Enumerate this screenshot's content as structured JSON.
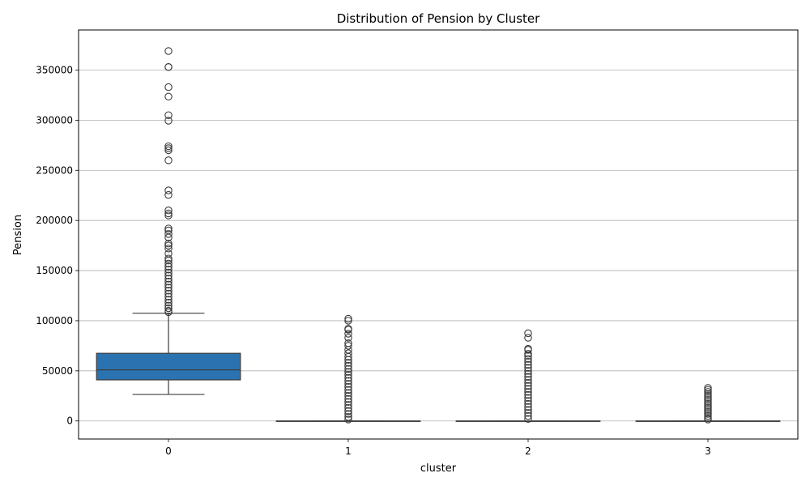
{
  "chart_data": {
    "type": "box",
    "title": "Distribution of Pension by Cluster",
    "xlabel": "cluster",
    "ylabel": "Pension",
    "categories": [
      "0",
      "1",
      "2",
      "3"
    ],
    "ylim": [
      -18000,
      390000
    ],
    "yticks": [
      0,
      50000,
      100000,
      150000,
      200000,
      250000,
      300000,
      350000
    ],
    "ytick_labels": [
      "0",
      "50000",
      "100000",
      "150000",
      "200000",
      "250000",
      "300000",
      "350000"
    ],
    "grid": "horizontal",
    "box_color": "#2a73b0",
    "boxes": [
      {
        "cluster": "0",
        "whisker_low": 26500,
        "q1": 41000,
        "median": 51000,
        "q3": 67500,
        "whisker_high": 107500,
        "outliers": [
          369000,
          353000,
          353000,
          333000,
          323500,
          305000,
          299500,
          274000,
          272000,
          270000,
          260000,
          230000,
          225500,
          210000,
          207000,
          205000,
          192000,
          190000,
          186500,
          183000,
          177000,
          175000,
          172000,
          167000,
          162000,
          160000,
          157000,
          154000,
          151000,
          148000,
          145000,
          142000,
          139000,
          136000,
          133000,
          130000,
          127000,
          124000,
          121000,
          118000,
          115000,
          112500,
          110000,
          108500
        ],
        "color": "#2a73b0"
      },
      {
        "cluster": "1",
        "whisker_low": 0,
        "q1": 0,
        "median": 0,
        "q3": 0,
        "whisker_high": 0,
        "outliers": [
          102000,
          100000,
          92000,
          91000,
          87000,
          83000,
          77500,
          75000,
          71000,
          67500,
          64000,
          61000,
          58000,
          55000,
          52000,
          49000,
          46000,
          43000,
          40000,
          37000,
          34000,
          31000,
          28000,
          25000,
          22000,
          19000,
          16000,
          13000,
          10000,
          7000,
          4000,
          1500
        ],
        "color": "#e1812c"
      },
      {
        "cluster": "2",
        "whisker_low": 0,
        "q1": 0,
        "median": 0,
        "q3": 0,
        "whisker_high": 0,
        "outliers": [
          87500,
          83000,
          72000,
          71000,
          67000,
          65000,
          62000,
          59000,
          56000,
          53000,
          50000,
          47000,
          44000,
          41000,
          38000,
          35000,
          32000,
          29000,
          26000,
          23000,
          20000,
          17000,
          14000,
          11000,
          8000,
          5000,
          2000
        ],
        "color": "#3a923a"
      },
      {
        "cluster": "3",
        "whisker_low": 0,
        "q1": 0,
        "median": 0,
        "q3": 0,
        "whisker_high": 0,
        "outliers": [
          33000,
          31000,
          29000,
          27000,
          25000,
          23000,
          21000,
          19000,
          17000,
          15000,
          13000,
          11000,
          9000,
          7000,
          5000,
          3000,
          1500
        ],
        "color": "#c03d3e"
      }
    ]
  }
}
